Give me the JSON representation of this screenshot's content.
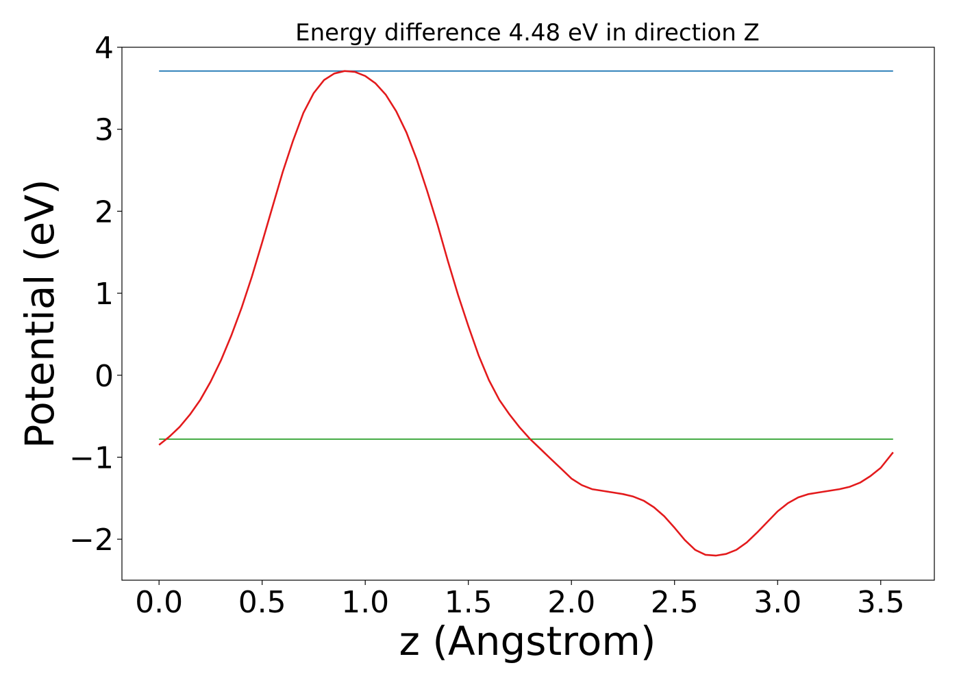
{
  "chart_data": {
    "type": "line",
    "title": "Energy difference 4.48 eV in direction Z",
    "xlabel": "z (Angstrom)",
    "ylabel": "Potential (eV)",
    "xlim": [
      -0.18,
      3.76
    ],
    "ylim": [
      -2.5,
      4.0
    ],
    "grid": false,
    "legend": "none",
    "x_ticks": [
      {
        "value": 0.0,
        "label": "0.0"
      },
      {
        "value": 0.5,
        "label": "0.5"
      },
      {
        "value": 1.0,
        "label": "1.0"
      },
      {
        "value": 1.5,
        "label": "1.5"
      },
      {
        "value": 2.0,
        "label": "2.0"
      },
      {
        "value": 2.5,
        "label": "2.5"
      },
      {
        "value": 3.0,
        "label": "3.0"
      },
      {
        "value": 3.5,
        "label": "3.5"
      }
    ],
    "y_ticks": [
      {
        "value": -2,
        "label": "−2"
      },
      {
        "value": -1,
        "label": "−1"
      },
      {
        "value": 0,
        "label": "0"
      },
      {
        "value": 1,
        "label": "1"
      },
      {
        "value": 2,
        "label": "2"
      },
      {
        "value": 3,
        "label": "3"
      },
      {
        "value": 4,
        "label": "4"
      }
    ],
    "series": [
      {
        "color": "#e31a1c",
        "x": [
          0.0,
          0.05,
          0.1,
          0.15,
          0.2,
          0.25,
          0.3,
          0.35,
          0.4,
          0.45,
          0.5,
          0.55,
          0.6,
          0.65,
          0.7,
          0.75,
          0.8,
          0.85,
          0.9,
          0.95,
          1.0,
          1.05,
          1.1,
          1.15,
          1.2,
          1.25,
          1.3,
          1.35,
          1.4,
          1.45,
          1.5,
          1.55,
          1.6,
          1.65,
          1.7,
          1.75,
          1.8,
          1.85,
          1.9,
          1.95,
          2.0,
          2.05,
          2.1,
          2.15,
          2.2,
          2.25,
          2.3,
          2.35,
          2.4,
          2.45,
          2.5,
          2.55,
          2.6,
          2.65,
          2.7,
          2.75,
          2.8,
          2.85,
          2.9,
          2.95,
          3.0,
          3.05,
          3.1,
          3.15,
          3.2,
          3.25,
          3.3,
          3.35,
          3.4,
          3.45,
          3.5,
          3.56
        ],
        "y": [
          -0.85,
          -0.75,
          -0.63,
          -0.48,
          -0.3,
          -0.08,
          0.18,
          0.48,
          0.82,
          1.2,
          1.62,
          2.05,
          2.48,
          2.86,
          3.2,
          3.44,
          3.6,
          3.68,
          3.71,
          3.7,
          3.65,
          3.56,
          3.42,
          3.22,
          2.96,
          2.63,
          2.25,
          1.84,
          1.4,
          0.98,
          0.6,
          0.24,
          -0.06,
          -0.3,
          -0.48,
          -0.64,
          -0.78,
          -0.9,
          -1.02,
          -1.14,
          -1.26,
          -1.34,
          -1.39,
          -1.41,
          -1.43,
          -1.45,
          -1.48,
          -1.53,
          -1.61,
          -1.72,
          -1.86,
          -2.01,
          -2.13,
          -2.19,
          -2.2,
          -2.18,
          -2.13,
          -2.04,
          -1.92,
          -1.79,
          -1.66,
          -1.56,
          -1.49,
          -1.45,
          -1.43,
          -1.41,
          -1.39,
          -1.36,
          -1.31,
          -1.23,
          -1.13,
          -0.94
        ]
      },
      {
        "color": "#1f77b4",
        "x": [
          0.0,
          3.56
        ],
        "y": [
          3.71,
          3.71
        ]
      },
      {
        "color": "#2ca02c",
        "x": [
          0.0,
          3.56
        ],
        "y": [
          -0.78,
          -0.78
        ]
      }
    ]
  }
}
